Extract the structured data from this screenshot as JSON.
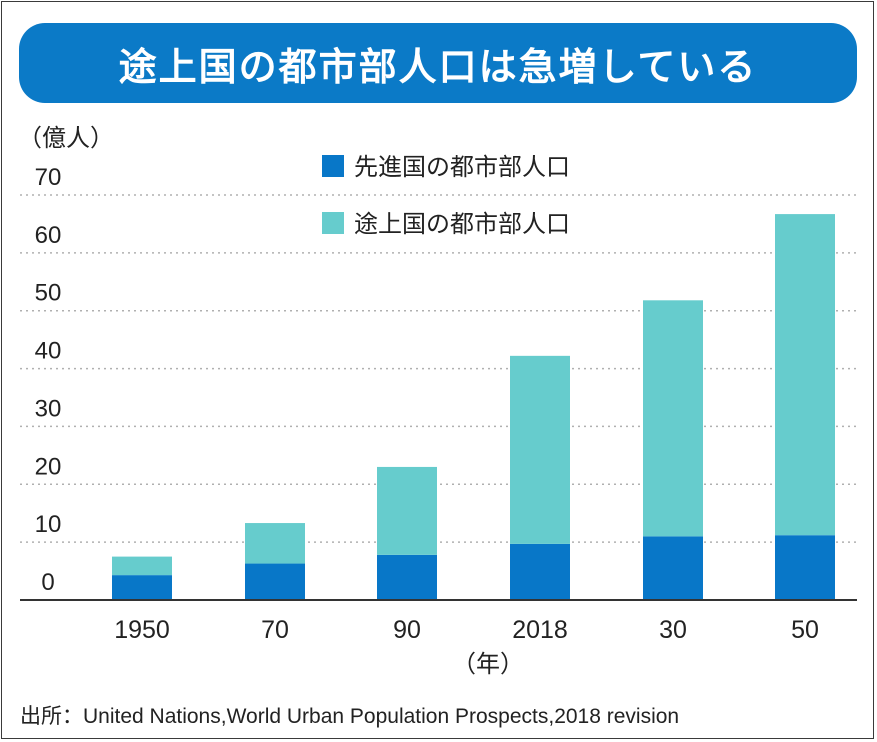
{
  "title": "途上国の都市部人口は急増している",
  "colors": {
    "title_bg": "#0b7ac7",
    "developed": "#0877c8",
    "developing": "#66cccd",
    "grid": "#b0b0b0",
    "axis": "#333333",
    "text": "#222222"
  },
  "chart_data": {
    "type": "bar",
    "stacked": true,
    "title": "途上国の都市部人口は急増している",
    "ylabel": "（億人）",
    "xlabel": "（年）",
    "ylim": [
      0,
      70
    ],
    "yticks": [
      0,
      10,
      20,
      30,
      40,
      50,
      60,
      70
    ],
    "categories": [
      "1950",
      "70",
      "90",
      "2018",
      "30",
      "50"
    ],
    "series": [
      {
        "name": "先進国の都市部人口",
        "color": "#0877c8",
        "values": [
          4.3,
          6.3,
          7.8,
          9.7,
          11.0,
          11.2
        ]
      },
      {
        "name": "途上国の都市部人口",
        "color": "#66cccd",
        "values": [
          3.2,
          7.0,
          15.2,
          32.5,
          40.8,
          55.5
        ]
      }
    ],
    "grid": true,
    "legend_position": "top-center"
  },
  "source": {
    "label": "出所：",
    "text": "United Nations,World Urban Population Prospects,2018 revision"
  }
}
